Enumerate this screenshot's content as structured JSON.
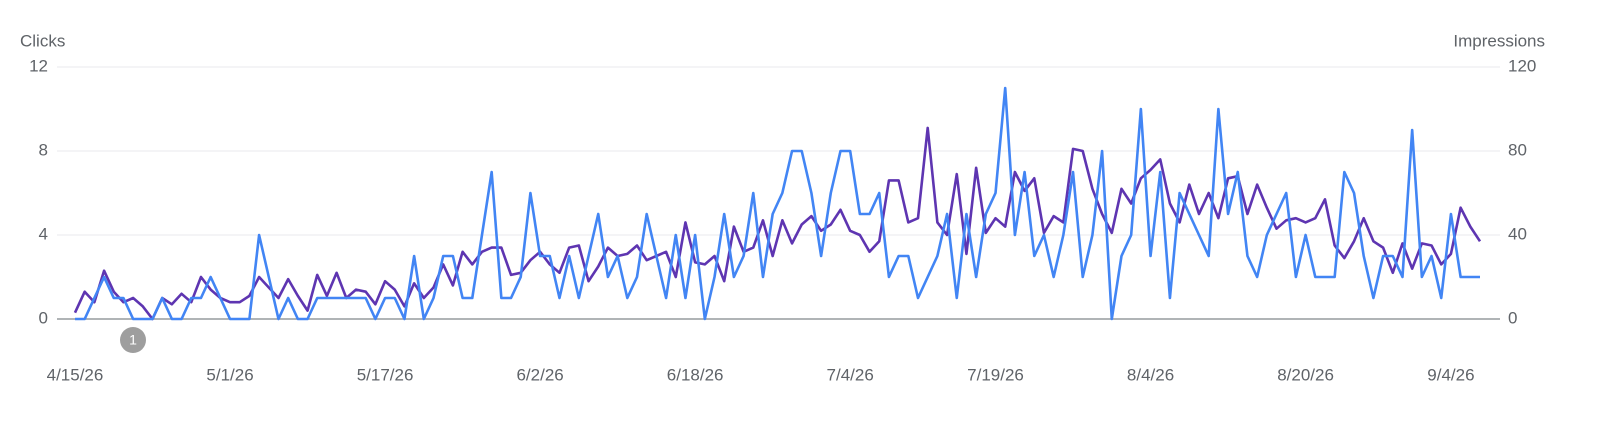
{
  "chart_data": {
    "type": "line",
    "categories": [
      "4/15/26",
      null,
      null,
      null,
      null,
      null,
      null,
      null,
      null,
      null,
      null,
      null,
      null,
      null,
      null,
      null,
      "5/1/26",
      null,
      null,
      null,
      null,
      null,
      null,
      null,
      null,
      null,
      null,
      null,
      null,
      null,
      null,
      null,
      "5/17/26",
      null,
      null,
      null,
      null,
      null,
      null,
      null,
      null,
      null,
      null,
      null,
      null,
      null,
      null,
      null,
      "6/2/26",
      null,
      null,
      null,
      null,
      null,
      null,
      null,
      null,
      null,
      null,
      null,
      null,
      null,
      null,
      null,
      "6/18/26",
      null,
      null,
      null,
      null,
      null,
      null,
      null,
      null,
      null,
      null,
      null,
      null,
      null,
      null,
      null,
      "7/4/26",
      null,
      null,
      null,
      null,
      null,
      null,
      null,
      null,
      null,
      null,
      null,
      null,
      null,
      null,
      "7/19/26",
      null,
      null,
      null,
      null,
      null,
      null,
      null,
      null,
      null,
      null,
      null,
      null,
      null,
      null,
      null,
      "8/4/26",
      null,
      null,
      null,
      null,
      null,
      null,
      null,
      null,
      null,
      null,
      null,
      null,
      null,
      null,
      null,
      "8/20/26",
      null,
      null,
      null,
      null,
      null,
      null,
      null,
      null,
      null,
      null,
      null,
      null,
      null,
      null,
      "9/4/26",
      null,
      null,
      null
    ],
    "series": [
      {
        "name": "Clicks",
        "color": "#4285f4",
        "axis": "y",
        "values": [
          0,
          0,
          1,
          2,
          1,
          1,
          0,
          0,
          0,
          1,
          0,
          0,
          1,
          1,
          2,
          1,
          0,
          0,
          0,
          4,
          2,
          0,
          1,
          0,
          0,
          1,
          1,
          1,
          1,
          1,
          1,
          0,
          1,
          1,
          0,
          3,
          0,
          1,
          3,
          3,
          1,
          1,
          4,
          7,
          1,
          1,
          2,
          6,
          3,
          3,
          1,
          3,
          1,
          3,
          5,
          2,
          3,
          1,
          2,
          5,
          3,
          1,
          4,
          1,
          4,
          0,
          2,
          5,
          2,
          3,
          6,
          2,
          5,
          6,
          8,
          8,
          6,
          3,
          6,
          8,
          8,
          5,
          5,
          6,
          2,
          3,
          3,
          1,
          2,
          3,
          5,
          1,
          5,
          2,
          5,
          6,
          11,
          4,
          7,
          3,
          4,
          2,
          4,
          7,
          2,
          4,
          8,
          0,
          3,
          4,
          10,
          3,
          7,
          1,
          6,
          5,
          4,
          3,
          10,
          5,
          7,
          3,
          2,
          4,
          5,
          6,
          2,
          4,
          2,
          2,
          2,
          7,
          6,
          3,
          1,
          3,
          3,
          2,
          9,
          2,
          3,
          1,
          5,
          2,
          2,
          2
        ]
      },
      {
        "name": "Impressions",
        "color": "#5e35b1",
        "axis": "y2",
        "values": [
          3,
          13,
          8,
          23,
          13,
          8,
          10,
          6,
          0,
          10,
          7,
          12,
          8,
          20,
          14,
          10,
          8,
          8,
          11,
          20,
          15,
          10,
          19,
          11,
          4,
          21,
          11,
          22,
          10,
          14,
          13,
          7,
          18,
          14,
          6,
          17,
          10,
          15,
          26,
          16,
          32,
          26,
          32,
          34,
          34,
          21,
          22,
          28,
          32,
          26,
          22,
          34,
          35,
          18,
          25,
          34,
          30,
          31,
          35,
          28,
          30,
          32,
          20,
          46,
          27,
          26,
          30,
          18,
          44,
          32,
          34,
          47,
          30,
          47,
          36,
          45,
          49,
          42,
          45,
          52,
          42,
          40,
          32,
          37,
          66,
          66,
          46,
          48,
          91,
          46,
          40,
          69,
          31,
          72,
          41,
          48,
          44,
          70,
          61,
          67,
          41,
          49,
          46,
          81,
          80,
          62,
          50,
          41,
          62,
          55,
          67,
          71,
          76,
          55,
          46,
          64,
          50,
          60,
          48,
          67,
          68,
          50,
          64,
          53,
          43,
          47,
          48,
          46,
          48,
          57,
          35,
          29,
          37,
          48,
          37,
          34,
          22,
          36,
          24,
          36,
          35,
          26,
          31,
          53,
          44,
          37
        ]
      }
    ],
    "ylim": [
      0,
      12
    ],
    "yticks": [
      0,
      4,
      8,
      12
    ],
    "y2lim": [
      0,
      120
    ],
    "y2ticks": [
      0,
      40,
      80,
      120
    ],
    "grid": true,
    "annotations": [
      "1"
    ]
  }
}
